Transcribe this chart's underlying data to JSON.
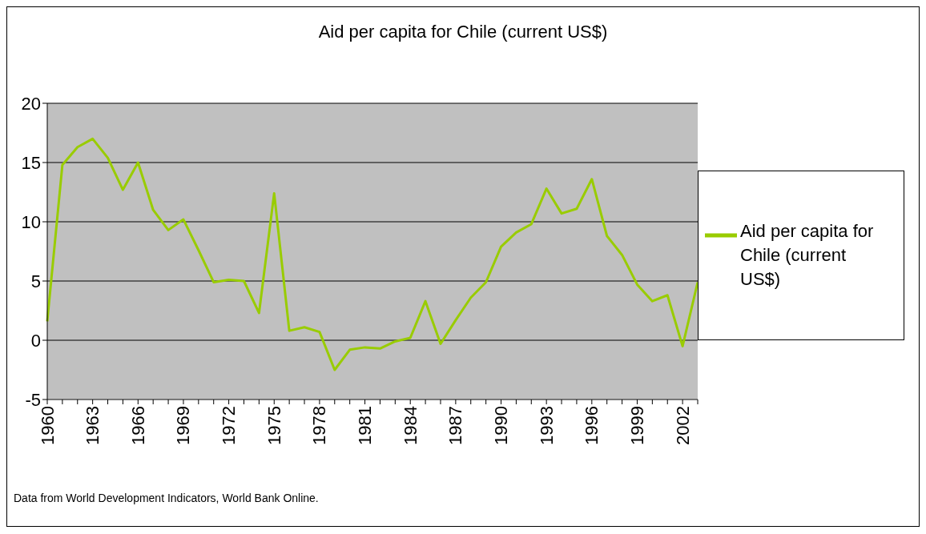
{
  "chart_data": {
    "type": "line",
    "title": "Aid per capita for Chile (current US$)",
    "categories": [
      "1960",
      null,
      null,
      "1963",
      null,
      null,
      "1966",
      null,
      null,
      "1969",
      null,
      null,
      "1972",
      null,
      null,
      "1975",
      null,
      null,
      "1978",
      null,
      null,
      "1981",
      null,
      null,
      "1984",
      null,
      null,
      "1987",
      null,
      null,
      "1990",
      null,
      null,
      "1993",
      null,
      null,
      "1996",
      null,
      null,
      "1999",
      null,
      null,
      "2002",
      null
    ],
    "series": [
      {
        "name": "Aid per capita for Chile (current US$)",
        "color": "#99cc00",
        "values": [
          1.6,
          14.8,
          16.3,
          17.0,
          15.4,
          12.7,
          15.0,
          11.0,
          9.3,
          10.2,
          7.6,
          4.9,
          5.1,
          5.0,
          2.3,
          12.4,
          0.8,
          1.1,
          0.7,
          -2.5,
          -0.8,
          -0.6,
          -0.7,
          -0.1,
          0.2,
          3.3,
          -0.3,
          1.7,
          3.6,
          4.9,
          7.9,
          9.1,
          9.8,
          12.8,
          10.7,
          11.1,
          13.6,
          8.8,
          7.2,
          4.7,
          3.3,
          3.8,
          -0.5,
          4.9
        ]
      }
    ],
    "ylim": [
      -5,
      20
    ],
    "yticks": [
      -5,
      0,
      5,
      10,
      15,
      20
    ],
    "grid": "y",
    "legend": "right",
    "marker": "none",
    "line_style": "solid",
    "annotations": [
      "Data from World Development Indicators, World Bank Online."
    ]
  }
}
